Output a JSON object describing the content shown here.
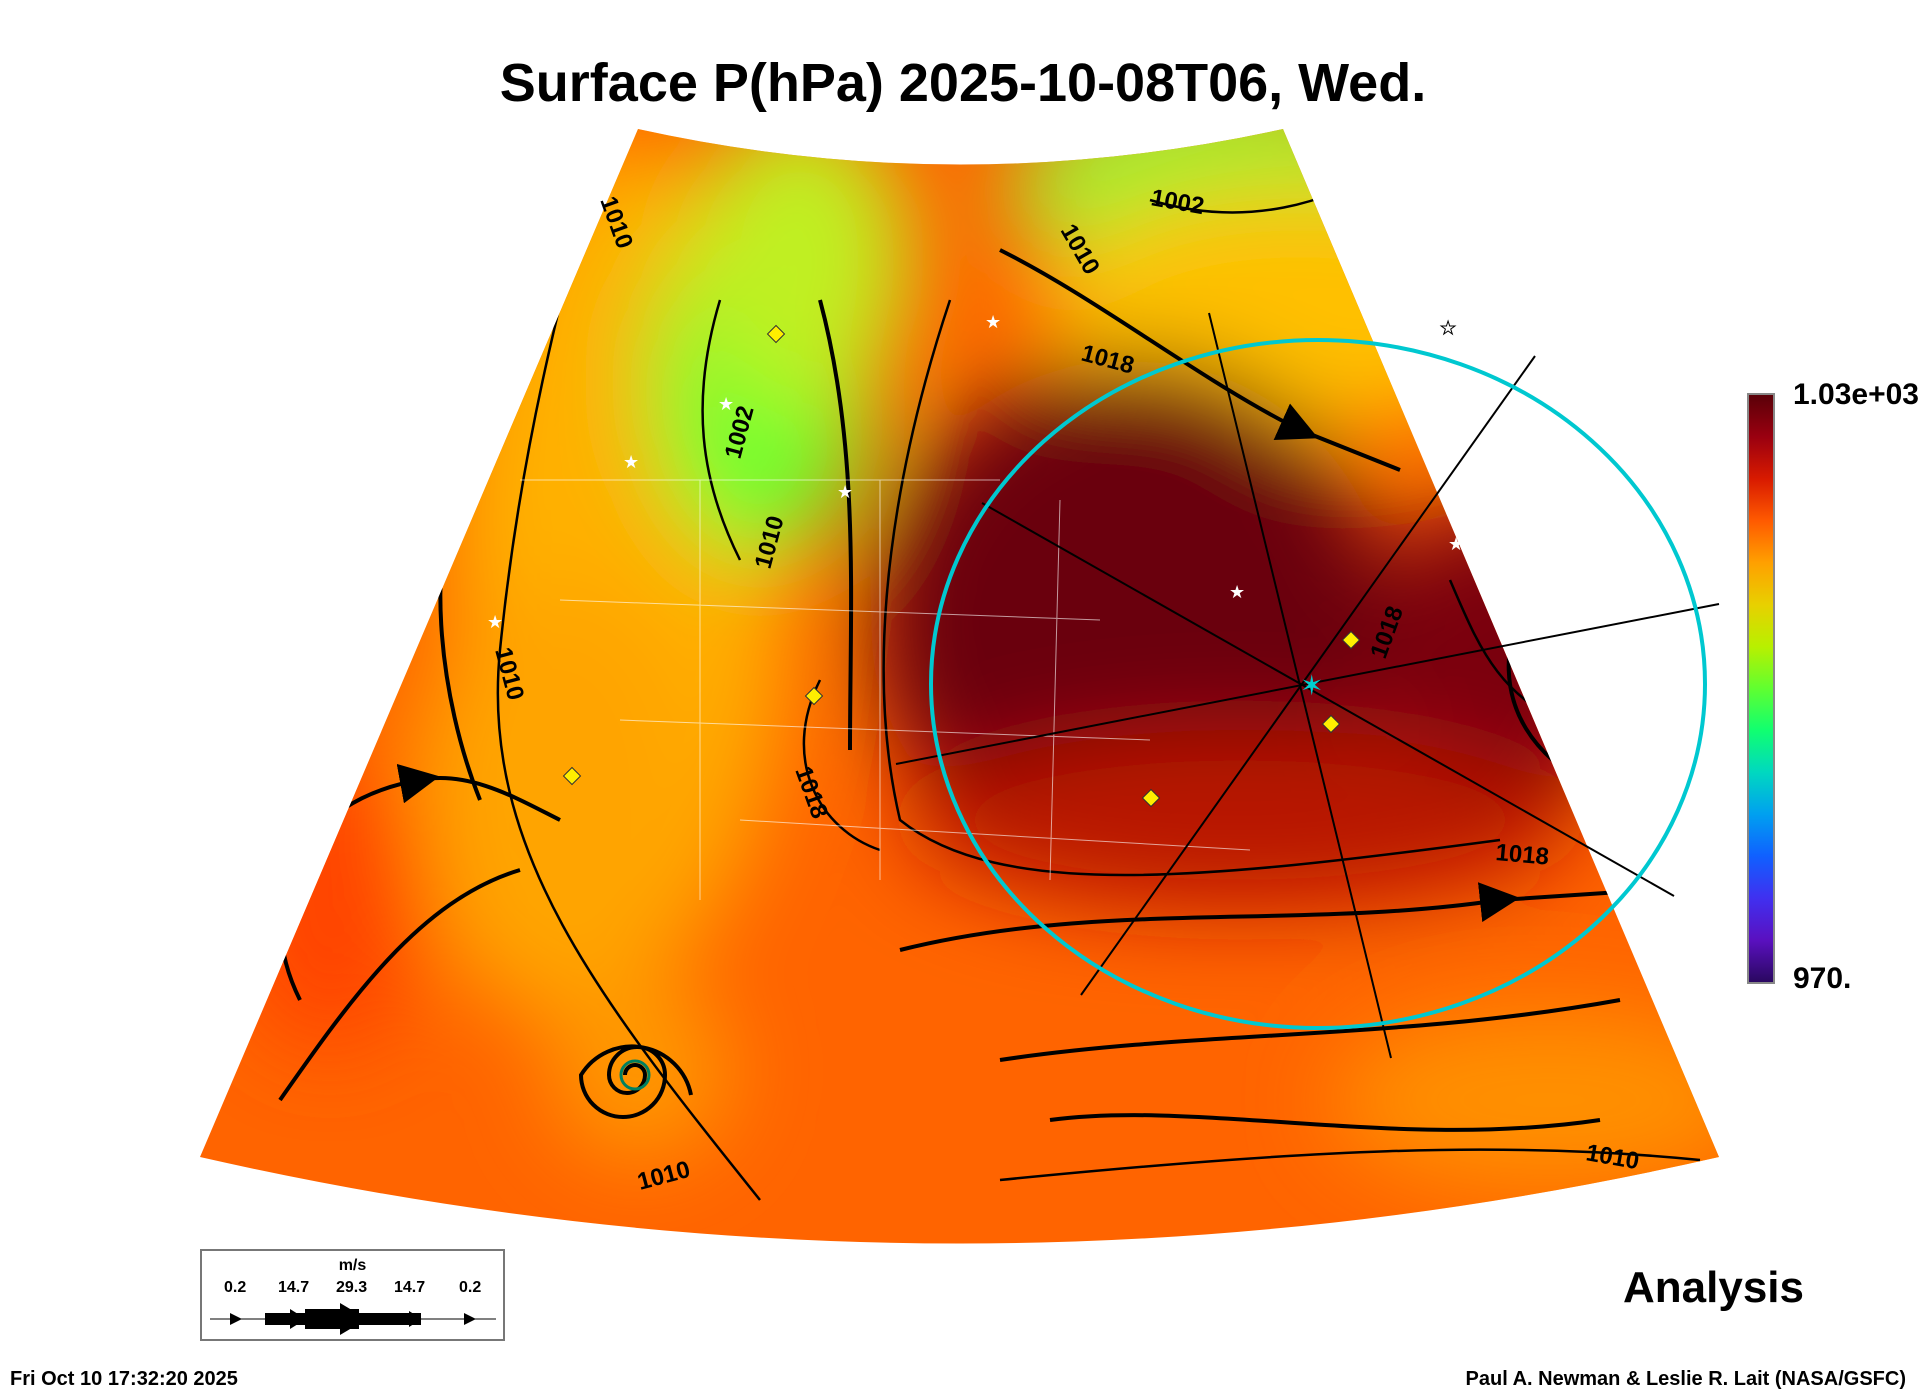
{
  "title": "Surface P(hPa) 2025-10-08T06, Wed.",
  "colorbar": {
    "max_label": "1.03e+03",
    "min_label": "970.",
    "colors": [
      "#5a0008",
      "#d81a00",
      "#ff5a00",
      "#ffa000",
      "#e8d000",
      "#60ff30",
      "#00d8c0",
      "#1060ff",
      "#2a0860"
    ]
  },
  "legend": {
    "unit": "m/s",
    "values": [
      "0.2",
      "14.7",
      "29.3",
      "14.7",
      "0.2"
    ]
  },
  "contour_labels": [
    "1010",
    "1002",
    "1010",
    "1018",
    "1002",
    "1010",
    "1010",
    "1018",
    "1018",
    "1018",
    "1010",
    "1010",
    "1018"
  ],
  "stamp": "Analysis",
  "footer": {
    "timestamp": "Fri Oct 10 17:32:20 2025",
    "credit": "Paul A. Newman & Leslie R. Lait (NASA/GSFC)"
  }
}
